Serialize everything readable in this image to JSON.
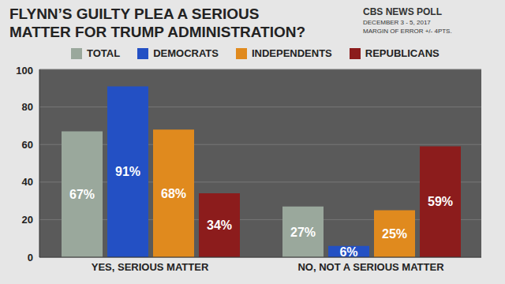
{
  "chart_data": {
    "type": "bar",
    "title": "FLYNN’S GUILTY PLEA A SERIOUS\nMATTER FOR TRUMP ADMINISTRATION?",
    "source": "CBS NEWS POLL",
    "annotations": [
      "DECEMBER 3 - 5, 2017",
      "MARGIN OF ERROR +/- 4PTS."
    ],
    "categories": [
      "YES, SERIOUS MATTER",
      "NO, NOT A SERIOUS MATTER"
    ],
    "series": [
      {
        "name": "TOTAL",
        "color": "#9aa89c",
        "values": [
          67,
          27
        ],
        "value_labels": [
          "67%",
          "27%"
        ]
      },
      {
        "name": "DEMOCRATS",
        "color": "#2350c4",
        "values": [
          91,
          6
        ],
        "value_labels": [
          "91%",
          "6%"
        ]
      },
      {
        "name": "INDEPENDENTS",
        "color": "#e08a1e",
        "values": [
          68,
          25
        ],
        "value_labels": [
          "68%",
          "25%"
        ]
      },
      {
        "name": "REPUBLICANS",
        "color": "#8c1c1c",
        "values": [
          34,
          59
        ],
        "value_labels": [
          "34%",
          "59%"
        ]
      }
    ],
    "ylim": [
      0,
      100
    ],
    "yticks": [
      0,
      20,
      40,
      60,
      80,
      100
    ],
    "grid": true,
    "legend": "top",
    "data_labels": true
  }
}
